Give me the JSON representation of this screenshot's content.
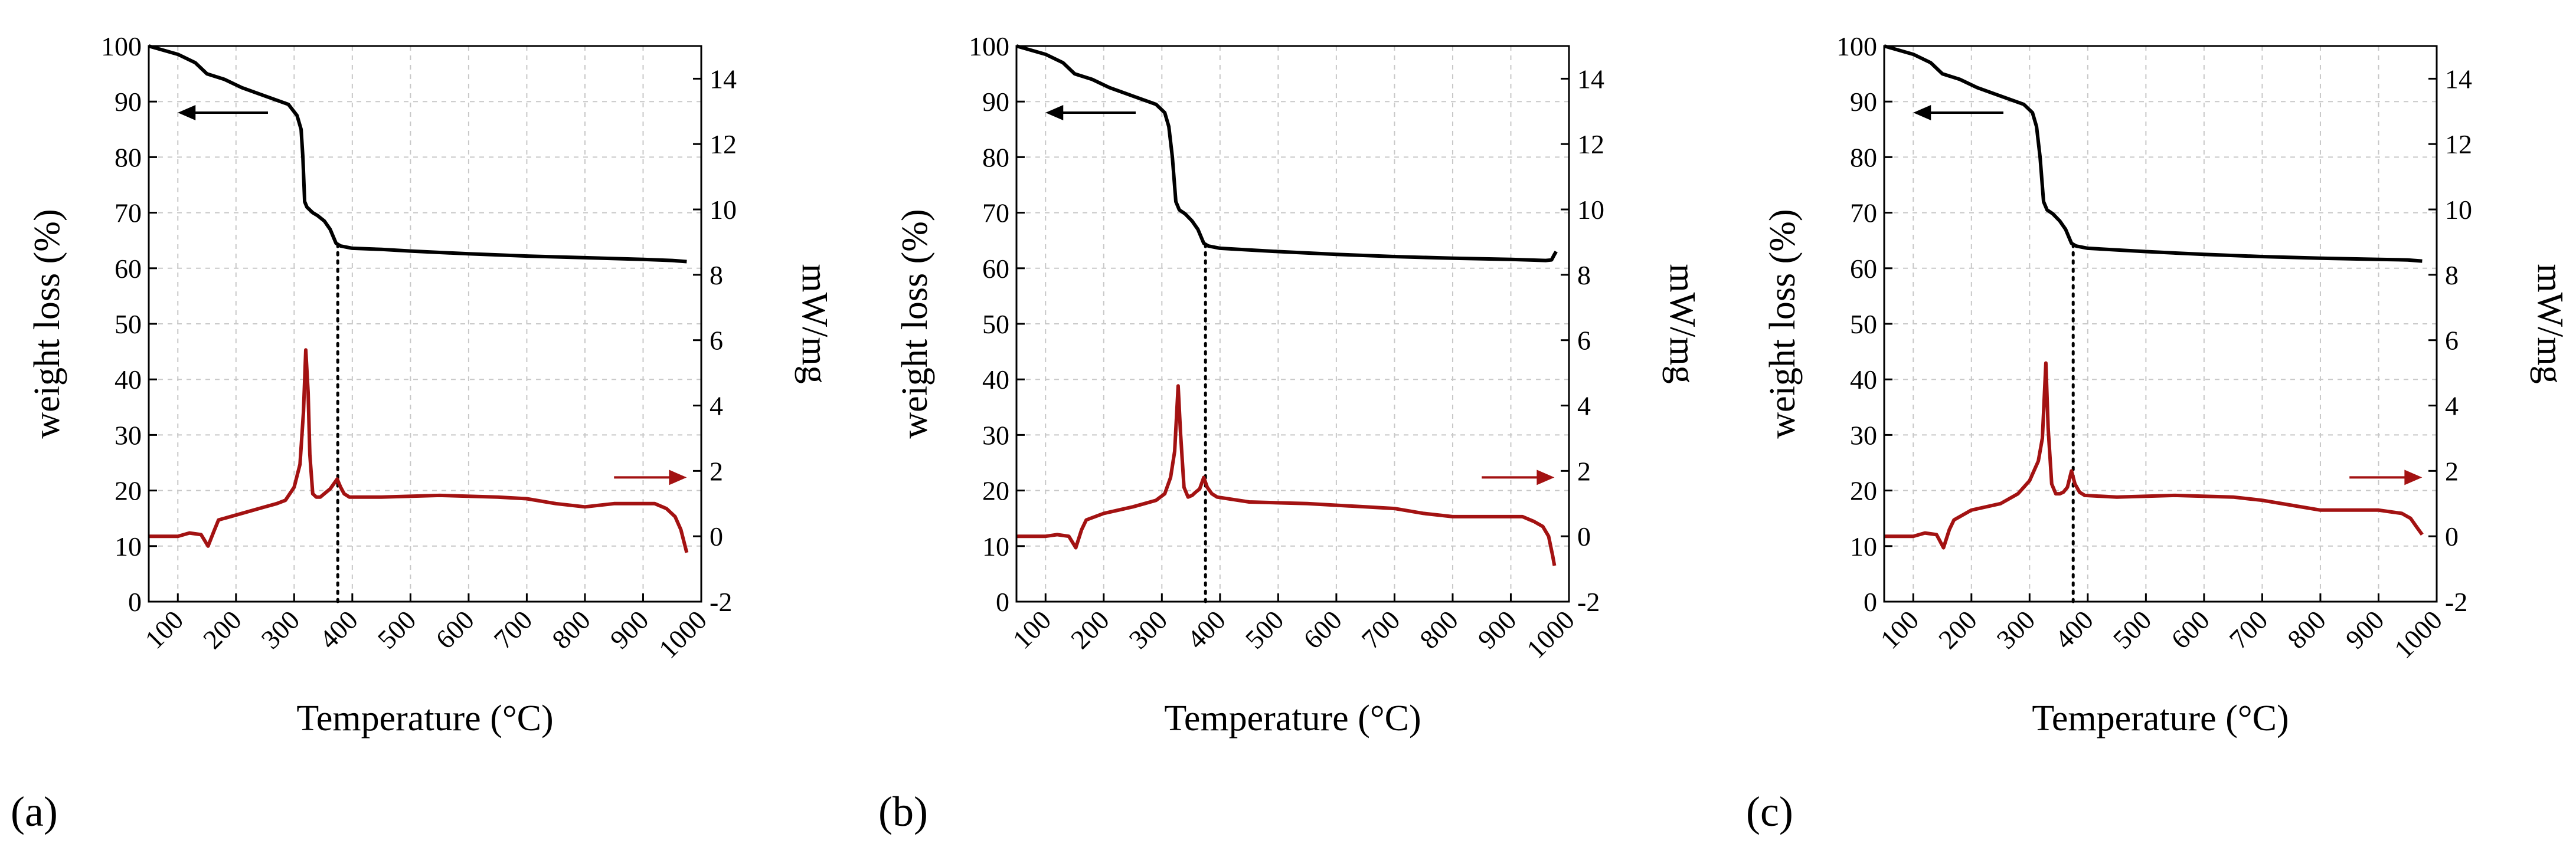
{
  "colors": {
    "tga": "#000000",
    "dsc": "#a31212",
    "grid": "#c8c8c8"
  },
  "chart_data": [
    {
      "type": "line",
      "label": "(a)",
      "xlabel": "Temperature (°C)",
      "ylabel": "weight loss  (%)",
      "y2label": "mW/mg",
      "xlim": [
        50,
        1000
      ],
      "ylim": [
        0,
        100
      ],
      "y2lim": [
        -2,
        15
      ],
      "xticks": [
        100,
        200,
        300,
        400,
        500,
        600,
        700,
        800,
        900,
        1000
      ],
      "yticks": [
        0,
        10,
        20,
        30,
        40,
        50,
        60,
        70,
        80,
        90,
        100
      ],
      "y2ticks": [
        -2,
        0,
        2,
        4,
        6,
        8,
        10,
        12,
        14
      ],
      "grid": true,
      "marker_temp": 375,
      "arrow_left": {
        "y": 88,
        "x_from": 255,
        "x_to": 100
      },
      "arrow_right": {
        "y2": 1.8,
        "x_from": 850,
        "x_to": 975
      },
      "series": [
        {
          "name": "weight loss",
          "axis": "left",
          "x": [
            50,
            100,
            130,
            150,
            180,
            210,
            250,
            290,
            305,
            312,
            315,
            318,
            322,
            332,
            340,
            352,
            362,
            372,
            380,
            400,
            450,
            500,
            600,
            700,
            800,
            900,
            950,
            975
          ],
          "y": [
            100,
            98.5,
            97,
            95,
            94,
            92.5,
            91,
            89.5,
            87.5,
            85,
            80,
            72,
            71,
            70,
            69.5,
            68.5,
            67,
            64.5,
            64,
            63.6,
            63.4,
            63.1,
            62.6,
            62.2,
            61.9,
            61.6,
            61.4,
            61.2
          ]
        },
        {
          "name": "DSC",
          "axis": "right",
          "x": [
            50,
            100,
            120,
            140,
            152,
            162,
            170,
            200,
            250,
            270,
            285,
            300,
            310,
            316,
            320,
            324,
            327,
            332,
            338,
            345,
            355,
            362,
            368,
            374,
            380,
            386,
            395,
            450,
            550,
            650,
            700,
            750,
            800,
            850,
            900,
            920,
            940,
            955,
            965,
            975
          ],
          "y": [
            0,
            0,
            0.1,
            0.05,
            -0.3,
            0.15,
            0.5,
            0.65,
            0.9,
            1.0,
            1.1,
            1.5,
            2.2,
            3.8,
            5.7,
            4.4,
            2.5,
            1.3,
            1.2,
            1.2,
            1.35,
            1.45,
            1.6,
            1.75,
            1.5,
            1.3,
            1.2,
            1.2,
            1.25,
            1.2,
            1.15,
            1.0,
            0.9,
            1.0,
            1.0,
            1.0,
            0.85,
            0.6,
            0.2,
            -0.5
          ]
        }
      ]
    },
    {
      "type": "line",
      "label": "(b)",
      "xlabel": "Temperature (°C)",
      "ylabel": "weight loss  (%)",
      "y2label": "mW/mg",
      "xlim": [
        50,
        1000
      ],
      "ylim": [
        0,
        100
      ],
      "y2lim": [
        -2,
        15
      ],
      "xticks": [
        100,
        200,
        300,
        400,
        500,
        600,
        700,
        800,
        900,
        1000
      ],
      "yticks": [
        0,
        10,
        20,
        30,
        40,
        50,
        60,
        70,
        80,
        90,
        100
      ],
      "y2ticks": [
        -2,
        0,
        2,
        4,
        6,
        8,
        10,
        12,
        14
      ],
      "grid": true,
      "marker_temp": 375,
      "arrow_left": {
        "y": 88,
        "x_from": 255,
        "x_to": 100
      },
      "arrow_right": {
        "y2": 1.8,
        "x_from": 850,
        "x_to": 975
      },
      "series": [
        {
          "name": "weight loss",
          "axis": "left",
          "x": [
            50,
            100,
            130,
            150,
            180,
            210,
            250,
            290,
            305,
            312,
            318,
            324,
            330,
            340,
            352,
            362,
            372,
            380,
            400,
            450,
            500,
            600,
            700,
            800,
            900,
            960,
            970,
            975,
            978
          ],
          "y": [
            100,
            98.5,
            97,
            95,
            94,
            92.5,
            91,
            89.5,
            88,
            85.5,
            80,
            72,
            70.5,
            69.8,
            68.5,
            67,
            64.5,
            64,
            63.6,
            63.3,
            63.0,
            62.5,
            62.1,
            61.8,
            61.6,
            61.4,
            61.5,
            62.5,
            63.0
          ]
        },
        {
          "name": "DSC",
          "axis": "right",
          "x": [
            50,
            100,
            120,
            140,
            152,
            162,
            170,
            200,
            250,
            270,
            290,
            305,
            315,
            322,
            328,
            332,
            338,
            345,
            352,
            358,
            365,
            372,
            378,
            386,
            395,
            450,
            550,
            650,
            700,
            750,
            800,
            850,
            900,
            920,
            940,
            955,
            965,
            972,
            975
          ],
          "y": [
            0,
            0,
            0.05,
            0.0,
            -0.35,
            0.2,
            0.5,
            0.7,
            0.9,
            1.0,
            1.1,
            1.3,
            1.8,
            2.6,
            4.6,
            3.2,
            1.5,
            1.2,
            1.25,
            1.35,
            1.45,
            1.8,
            1.5,
            1.3,
            1.2,
            1.05,
            1.0,
            0.9,
            0.85,
            0.7,
            0.6,
            0.6,
            0.6,
            0.6,
            0.45,
            0.3,
            0.0,
            -0.6,
            -0.9
          ]
        }
      ]
    },
    {
      "type": "line",
      "label": "(c)",
      "xlabel": "Temperature (°C)",
      "ylabel": "weight loss  (%)",
      "y2label": "mW/mg",
      "xlim": [
        50,
        1000
      ],
      "ylim": [
        0,
        100
      ],
      "y2lim": [
        -2,
        15
      ],
      "xticks": [
        100,
        200,
        300,
        400,
        500,
        600,
        700,
        800,
        900,
        1000
      ],
      "yticks": [
        0,
        10,
        20,
        30,
        40,
        50,
        60,
        70,
        80,
        90,
        100
      ],
      "y2ticks": [
        -2,
        0,
        2,
        4,
        6,
        8,
        10,
        12,
        14
      ],
      "grid": true,
      "marker_temp": 375,
      "arrow_left": {
        "y": 88,
        "x_from": 255,
        "x_to": 100
      },
      "arrow_right": {
        "y2": 1.8,
        "x_from": 850,
        "x_to": 975
      },
      "series": [
        {
          "name": "weight loss",
          "axis": "left",
          "x": [
            50,
            100,
            130,
            150,
            180,
            210,
            250,
            290,
            305,
            312,
            318,
            324,
            330,
            340,
            352,
            362,
            372,
            380,
            400,
            450,
            500,
            600,
            700,
            800,
            900,
            950,
            975
          ],
          "y": [
            100,
            98.5,
            97,
            95,
            94,
            92.5,
            91,
            89.5,
            88,
            85.5,
            80,
            72,
            70.5,
            69.8,
            68.5,
            67,
            64.5,
            64,
            63.6,
            63.3,
            63.0,
            62.5,
            62.1,
            61.8,
            61.6,
            61.5,
            61.3
          ]
        },
        {
          "name": "DSC",
          "axis": "right",
          "x": [
            50,
            100,
            120,
            140,
            152,
            162,
            170,
            200,
            250,
            280,
            300,
            315,
            322,
            328,
            332,
            338,
            345,
            352,
            358,
            365,
            372,
            378,
            386,
            395,
            450,
            550,
            650,
            700,
            750,
            800,
            850,
            900,
            920,
            940,
            955,
            965,
            975
          ],
          "y": [
            0,
            0,
            0.1,
            0.05,
            -0.35,
            0.2,
            0.5,
            0.8,
            1.0,
            1.3,
            1.7,
            2.3,
            3.0,
            5.3,
            3.3,
            1.6,
            1.3,
            1.3,
            1.35,
            1.5,
            2.0,
            1.6,
            1.35,
            1.25,
            1.2,
            1.25,
            1.2,
            1.1,
            0.95,
            0.8,
            0.8,
            0.8,
            0.75,
            0.7,
            0.55,
            0.3,
            0.05
          ]
        }
      ]
    }
  ]
}
